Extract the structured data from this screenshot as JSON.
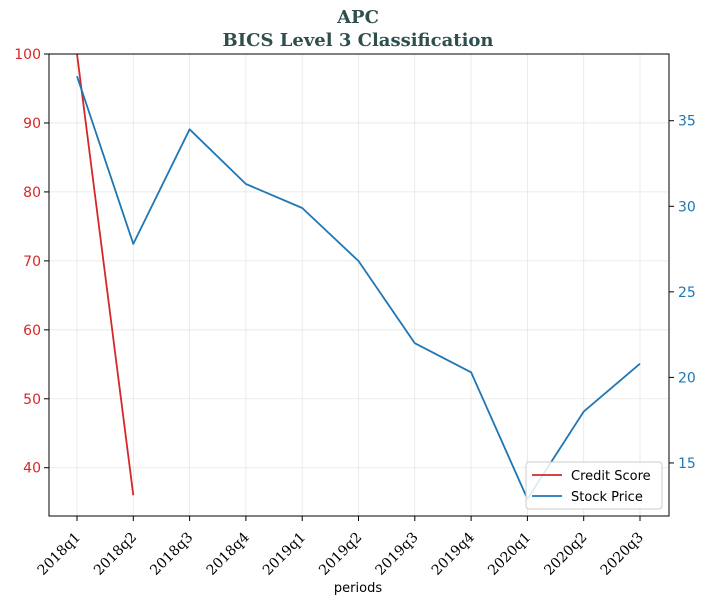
{
  "chart_data": {
    "type": "line",
    "title": "APC",
    "subtitle": "BICS Level 3 Classification",
    "xlabel": "periods",
    "categories": [
      "2018q1",
      "2018q2",
      "2018q3",
      "2018q4",
      "2019q1",
      "2019q2",
      "2019q3",
      "2019q4",
      "2020q1",
      "2020q2",
      "2020q3"
    ],
    "left_axis": {
      "ylim": [
        33,
        100
      ],
      "ticks": [
        40,
        50,
        60,
        70,
        80,
        90,
        100
      ],
      "color": "#d62728"
    },
    "right_axis": {
      "ylim": [
        11.9,
        38.9
      ],
      "ticks": [
        15,
        20,
        25,
        30,
        35
      ],
      "color": "#1f77b4"
    },
    "series": [
      {
        "name": "Credit Score",
        "axis": "left",
        "color": "#d62728",
        "values": [
          100,
          36,
          null,
          null,
          null,
          null,
          null,
          null,
          null,
          null,
          null
        ]
      },
      {
        "name": "Stock Price",
        "axis": "right",
        "color": "#1f77b4",
        "values": [
          37.6,
          27.8,
          34.5,
          31.3,
          29.9,
          26.8,
          22.0,
          20.3,
          12.9,
          18.0,
          20.8
        ]
      }
    ],
    "grid": true,
    "legend_position": "lower-right"
  }
}
